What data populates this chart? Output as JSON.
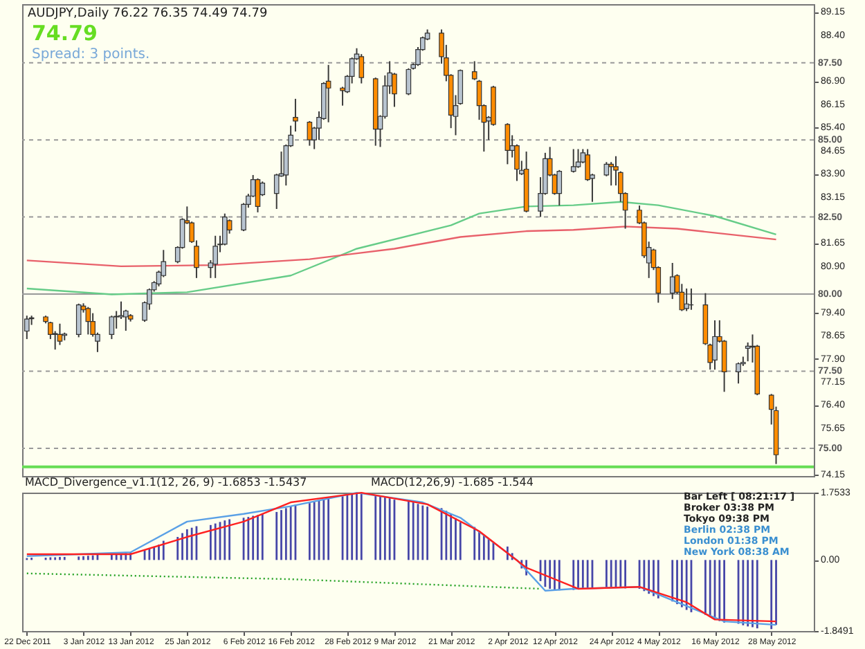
{
  "chart_data": [
    {
      "type": "candlestick",
      "title": "AUDJPY,Daily 76.22 76.35 74.49 74.79",
      "subtitle": "74.79",
      "annotations": [
        "Spread: 3 points."
      ],
      "x": [
        "2011-12-22",
        "2011-12-23",
        "2011-12-26",
        "2011-12-27",
        "2011-12-28",
        "2011-12-29",
        "2011-12-30",
        "2012-01-02",
        "2012-01-03",
        "2012-01-04",
        "2012-01-05",
        "2012-01-06",
        "2012-01-09",
        "2012-01-10",
        "2012-01-11",
        "2012-01-12",
        "2012-01-13",
        "2012-01-16",
        "2012-01-17",
        "2012-01-18",
        "2012-01-19",
        "2012-01-20",
        "2012-01-23",
        "2012-01-24",
        "2012-01-25",
        "2012-01-26",
        "2012-01-27",
        "2012-01-30",
        "2012-01-31",
        "2012-02-01",
        "2012-02-02",
        "2012-02-03",
        "2012-02-06",
        "2012-02-07",
        "2012-02-08",
        "2012-02-09",
        "2012-02-10",
        "2012-02-13",
        "2012-02-14",
        "2012-02-15",
        "2012-02-16",
        "2012-02-17",
        "2012-02-20",
        "2012-02-21",
        "2012-02-22",
        "2012-02-23",
        "2012-02-24",
        "2012-02-27",
        "2012-02-28",
        "2012-02-29",
        "2012-03-01",
        "2012-03-02",
        "2012-03-05",
        "2012-03-06",
        "2012-03-07",
        "2012-03-08",
        "2012-03-09",
        "2012-03-12",
        "2012-03-13",
        "2012-03-14",
        "2012-03-15",
        "2012-03-16",
        "2012-03-19",
        "2012-03-20",
        "2012-03-21",
        "2012-03-22",
        "2012-03-23",
        "2012-03-26",
        "2012-03-27",
        "2012-03-28",
        "2012-03-29",
        "2012-03-30",
        "2012-04-02",
        "2012-04-03",
        "2012-04-04",
        "2012-04-05",
        "2012-04-06",
        "2012-04-09",
        "2012-04-10",
        "2012-04-11",
        "2012-04-12",
        "2012-04-13",
        "2012-04-16",
        "2012-04-17",
        "2012-04-18",
        "2012-04-19",
        "2012-04-20",
        "2012-04-23",
        "2012-04-24",
        "2012-04-25",
        "2012-04-26",
        "2012-04-27",
        "2012-04-30",
        "2012-05-01",
        "2012-05-02",
        "2012-05-03",
        "2012-05-04",
        "2012-05-07",
        "2012-05-08",
        "2012-05-09",
        "2012-05-10",
        "2012-05-11",
        "2012-05-14",
        "2012-05-15",
        "2012-05-16",
        "2012-05-17",
        "2012-05-18",
        "2012-05-21",
        "2012-05-22",
        "2012-05-23",
        "2012-05-24",
        "2012-05-25",
        "2012-05-28",
        "2012-05-29"
      ],
      "ohlc": [
        [
          78.8,
          79.3,
          78.54,
          79.19
        ],
        [
          79.2,
          79.3,
          79.0,
          79.23
        ],
        [
          79.26,
          79.3,
          79.05,
          79.11
        ],
        [
          79.07,
          79.1,
          78.54,
          78.69
        ],
        [
          78.69,
          78.8,
          78.2,
          78.72
        ],
        [
          78.69,
          79.04,
          78.35,
          78.47
        ],
        [
          78.66,
          78.75,
          78.5,
          78.7
        ],
        [
          78.69,
          79.69,
          78.6,
          79.65
        ],
        [
          79.61,
          79.7,
          79.4,
          79.49
        ],
        [
          79.53,
          79.58,
          78.69,
          79.11
        ],
        [
          79.11,
          79.38,
          78.62,
          78.69
        ],
        [
          78.47,
          78.75,
          78.12,
          78.69
        ],
        [
          78.69,
          79.3,
          78.54,
          79.26
        ],
        [
          79.26,
          79.45,
          78.88,
          79.28
        ],
        [
          79.26,
          79.76,
          79.19,
          79.3
        ],
        [
          79.26,
          79.49,
          78.81,
          79.45
        ],
        [
          79.3,
          79.35,
          79.11,
          79.19
        ],
        [
          79.15,
          79.76,
          79.1,
          79.72
        ],
        [
          79.68,
          80.18,
          79.49,
          80.14
        ],
        [
          80.14,
          80.42,
          80.08,
          80.37
        ],
        [
          80.33,
          80.76,
          80.25,
          80.71
        ],
        [
          80.6,
          81.43,
          80.55,
          81.05
        ],
        [
          81.05,
          81.55,
          81.0,
          81.51
        ],
        [
          81.51,
          82.46,
          81.47,
          82.42
        ],
        [
          82.38,
          82.84,
          82.27,
          82.31
        ],
        [
          82.31,
          82.35,
          81.66,
          81.7
        ],
        [
          81.55,
          81.74,
          80.52,
          80.86
        ],
        [
          80.86,
          81.1,
          80.52,
          81.01
        ],
        [
          80.97,
          81.89,
          80.52,
          81.55
        ],
        [
          81.6,
          81.89,
          81.36,
          81.62
        ],
        [
          81.62,
          82.61,
          81.58,
          82.5
        ],
        [
          82.38,
          82.42,
          81.96,
          82.08
        ],
        [
          82.08,
          82.95,
          82.04,
          82.91
        ],
        [
          82.91,
          83.25,
          82.8,
          83.18
        ],
        [
          83.18,
          83.86,
          83.14,
          83.71
        ],
        [
          83.71,
          83.75,
          82.65,
          82.84
        ],
        [
          83.22,
          83.65,
          83.18,
          83.6
        ],
        [
          83.26,
          83.9,
          82.76,
          83.86
        ],
        [
          83.83,
          84.62,
          83.8,
          83.9
        ],
        [
          83.86,
          84.85,
          83.52,
          84.81
        ],
        [
          84.81,
          85.46,
          84.77,
          85.15
        ],
        [
          85.73,
          86.33,
          85.27,
          85.61
        ],
        [
          85.57,
          85.61,
          84.81,
          85.0
        ],
        [
          85.0,
          85.42,
          84.7,
          85.38
        ],
        [
          85.38,
          85.92,
          85.0,
          85.73
        ],
        [
          85.69,
          86.87,
          85.65,
          86.83
        ],
        [
          86.9,
          87.43,
          85.57,
          86.68
        ],
        [
          86.68,
          86.72,
          86.11,
          86.6
        ],
        [
          86.56,
          87.1,
          86.52,
          87.06
        ],
        [
          87.06,
          87.67,
          86.83,
          87.63
        ],
        [
          87.63,
          87.97,
          87.59,
          87.78
        ],
        [
          87.7,
          87.78,
          86.83,
          87.02
        ],
        [
          86.98,
          87.02,
          84.81,
          85.35
        ],
        [
          85.35,
          85.8,
          84.77,
          85.76
        ],
        [
          85.76,
          87.09,
          85.69,
          86.75
        ],
        [
          86.75,
          87.55,
          86.49,
          87.17
        ],
        [
          87.13,
          87.17,
          86.07,
          86.49
        ],
        [
          86.49,
          87.32,
          86.45,
          87.28
        ],
        [
          87.32,
          87.48,
          87.28,
          87.44
        ],
        [
          87.44,
          88.01,
          87.4,
          87.93
        ],
        [
          87.93,
          88.35,
          87.89,
          88.31
        ],
        [
          88.27,
          88.58,
          88.23,
          88.46
        ],
        [
          88.46,
          88.58,
          87.47,
          87.7
        ],
        [
          87.66,
          88.08,
          86.9,
          87.09
        ],
        [
          87.09,
          87.13,
          85.38,
          85.8
        ],
        [
          85.76,
          86.45,
          85.15,
          86.11
        ],
        [
          86.18,
          87.28,
          86.14,
          87.25
        ],
        [
          87.21,
          87.55,
          86.94,
          86.98
        ],
        [
          86.9,
          86.94,
          85.65,
          86.11
        ],
        [
          86.11,
          86.15,
          84.62,
          85.57
        ],
        [
          85.61,
          85.77,
          85.0,
          85.73
        ],
        [
          86.71,
          86.75,
          85.46,
          85.5
        ],
        [
          85.5,
          85.54,
          84.21,
          84.66
        ],
        [
          84.66,
          85.15,
          84.43,
          84.81
        ],
        [
          84.81,
          84.85,
          83.67,
          84.05
        ],
        [
          83.9,
          84.32,
          83.86,
          84.01
        ],
        [
          84.05,
          84.62,
          82.65,
          82.69
        ],
        [
          82.69,
          83.79,
          82.5,
          83.26
        ],
        [
          83.26,
          84.58,
          83.22,
          84.39
        ],
        [
          84.39,
          84.77,
          83.82,
          83.86
        ],
        [
          83.86,
          83.9,
          83.22,
          83.26
        ],
        [
          83.26,
          84.02,
          82.87,
          83.98
        ],
        [
          83.98,
          84.7,
          83.94,
          84.13
        ],
        [
          84.13,
          84.7,
          84.09,
          84.28
        ],
        [
          84.28,
          84.7,
          84.24,
          84.58
        ],
        [
          84.51,
          84.7,
          83.67,
          83.71
        ],
        [
          83.75,
          83.9,
          82.99,
          83.86
        ],
        [
          83.86,
          84.28,
          83.82,
          84.21
        ],
        [
          84.21,
          84.28,
          83.52,
          84.13
        ],
        [
          84.13,
          84.47,
          83.52,
          84.02
        ],
        [
          83.94,
          83.98,
          82.99,
          83.26
        ],
        [
          83.26,
          83.3,
          82.12,
          82.72
        ],
        [
          82.72,
          82.87,
          82.27,
          82.31
        ],
        [
          82.31,
          82.35,
          81.17,
          81.24
        ],
        [
          81.01,
          81.7,
          80.52,
          81.51
        ],
        [
          81.43,
          81.47,
          80.78,
          80.86
        ],
        [
          80.86,
          80.9,
          79.72,
          80.03
        ],
        [
          80.03,
          81.01,
          79.84,
          80.56
        ],
        [
          80.6,
          80.64,
          80.0,
          80.06
        ],
        [
          80.06,
          80.33,
          79.45,
          79.49
        ],
        [
          79.53,
          80.18,
          79.45,
          79.68
        ],
        [
          79.65,
          80.18,
          79.49,
          79.65
        ],
        [
          79.65,
          80.03,
          78.35,
          78.39
        ],
        [
          78.35,
          78.39,
          77.55,
          77.78
        ],
        [
          77.86,
          79.15,
          77.55,
          78.62
        ],
        [
          78.62,
          79.15,
          78.43,
          78.47
        ],
        [
          78.47,
          78.51,
          76.83,
          77.48
        ],
        [
          77.48,
          77.78,
          77.1,
          77.74
        ],
        [
          77.74,
          77.97,
          77.67,
          77.78
        ],
        [
          78.24,
          78.43,
          77.82,
          78.31
        ],
        [
          78.28,
          78.69,
          77.78,
          78.31
        ],
        [
          78.31,
          78.35,
          76.72,
          76.76
        ],
        [
          76.72,
          76.76,
          75.77,
          76.26
        ],
        [
          76.22,
          76.35,
          74.49,
          74.79
        ]
      ],
      "colors": [
        "#b8c4d0",
        "#b8c4d0",
        "#ff8c00",
        "#ff8c00",
        "#b8c4d0",
        "#ff8c00",
        "#b8c4d0",
        "#b8c4d0",
        "#ff8c00",
        "#ff8c00",
        "#ff8c00",
        "#b8c4d0",
        "#b8c4d0",
        "#b8c4d0",
        "#b8c4d0",
        "#b8c4d0",
        "#ff8c00",
        "#b8c4d0",
        "#b8c4d0",
        "#b8c4d0",
        "#b8c4d0",
        "#b8c4d0",
        "#b8c4d0",
        "#b8c4d0",
        "#ff8c00",
        "#ff8c00",
        "#ff8c00",
        "#b8c4d0",
        "#b8c4d0",
        "#b8c4d0",
        "#b8c4d0",
        "#ff8c00",
        "#b8c4d0",
        "#b8c4d0",
        "#b8c4d0",
        "#ff8c00",
        "#b8c4d0",
        "#b8c4d0",
        "#b8c4d0",
        "#b8c4d0",
        "#b8c4d0",
        "#ff8c00",
        "#ff8c00",
        "#b8c4d0",
        "#b8c4d0",
        "#b8c4d0",
        "#ff8c00",
        "#ff8c00",
        "#b8c4d0",
        "#b8c4d0",
        "#b8c4d0",
        "#ff8c00",
        "#ff8c00",
        "#b8c4d0",
        "#b8c4d0",
        "#b8c4d0",
        "#ff8c00",
        "#b8c4d0",
        "#b8c4d0",
        "#b8c4d0",
        "#b8c4d0",
        "#b8c4d0",
        "#ff8c00",
        "#ff8c00",
        "#ff8c00",
        "#b8c4d0",
        "#b8c4d0",
        "#ff8c00",
        "#ff8c00",
        "#ff8c00",
        "#b8c4d0",
        "#ff8c00",
        "#ff8c00",
        "#b8c4d0",
        "#ff8c00",
        "#b8c4d0",
        "#ff8c00",
        "#b8c4d0",
        "#b8c4d0",
        "#ff8c00",
        "#ff8c00",
        "#b8c4d0",
        "#b8c4d0",
        "#b8c4d0",
        "#b8c4d0",
        "#ff8c00",
        "#b8c4d0",
        "#b8c4d0",
        "#ff8c00",
        "#ff8c00",
        "#ff8c00",
        "#ff8c00",
        "#ff8c00",
        "#ff8c00",
        "#b8c4d0",
        "#ff8c00",
        "#ff8c00",
        "#b8c4d0",
        "#ff8c00",
        "#ff8c00",
        "#b8c4d0",
        "#333333",
        "#ff8c00",
        "#ff8c00",
        "#b8c4d0",
        "#ff8c00",
        "#ff8c00",
        "#b8c4d0",
        "#b8c4d0",
        "#b8c4d0",
        "#b8c4d0",
        "#ff8c00",
        "#ff8c00",
        "#ff8c00"
      ],
      "series": [
        {
          "type": "line",
          "color": "#66cc88",
          "x": [
            "2011-12-22",
            "2012-01-09",
            "2012-01-25",
            "2012-02-16",
            "2012-03-01",
            "2012-03-21",
            "2012-03-27",
            "2012-04-06",
            "2012-04-16",
            "2012-04-26",
            "2012-05-04",
            "2012-05-16",
            "2012-05-29"
          ],
          "values": [
            80.18,
            79.99,
            80.06,
            80.6,
            81.47,
            82.23,
            82.61,
            82.84,
            82.88,
            82.99,
            82.88,
            82.53,
            81.93
          ]
        },
        {
          "type": "line",
          "color": "#e8606a",
          "x": [
            "2011-12-22",
            "2012-01-11",
            "2012-01-31",
            "2012-02-20",
            "2012-03-09",
            "2012-03-23",
            "2012-04-06",
            "2012-04-16",
            "2012-04-27",
            "2012-05-08",
            "2012-05-29"
          ],
          "values": [
            81.09,
            80.9,
            80.94,
            81.13,
            81.47,
            81.85,
            82.04,
            82.08,
            82.19,
            82.12,
            81.77
          ]
        }
      ],
      "xlim": [
        "2011-12-21",
        "2012-06-06"
      ],
      "ylim": [
        74.1,
        89.4
      ],
      "yticks": [
        74.15,
        75.65,
        {
          "value": 76.4,
          "label": "76.40"
        },
        77.15,
        {
          "value": 77.9,
          "label": "77.90"
        },
        78.65,
        {
          "value": 79.4,
          "label": "79.40"
        },
        {
          "value": 80.9,
          "label": "80.90"
        },
        81.65,
        83.15,
        {
          "value": 83.9,
          "label": "83.90"
        },
        84.65,
        {
          "value": 85.4,
          "label": "85.40"
        },
        86.15,
        {
          "value": 86.9,
          "label": "86.90"
        },
        {
          "value": 88.4,
          "label": "88.40"
        },
        89.15
      ],
      "tick_labels": "y",
      "ref_lines": [
        {
          "axis": "y",
          "value": 87.5,
          "label": "87.50",
          "color": "#999999",
          "line_style": "dashed"
        },
        {
          "axis": "y",
          "value": 85.0,
          "label": "85.00",
          "color": "#999999",
          "line_style": "dashed"
        },
        {
          "axis": "y",
          "value": 82.5,
          "label": "82.50",
          "color": "#999999",
          "line_style": "dashed"
        },
        {
          "axis": "y",
          "value": 80.0,
          "label": "80.00",
          "color": "#999999",
          "line_style": "solid"
        },
        {
          "axis": "y",
          "value": 77.5,
          "label": "77.50",
          "color": "#999999",
          "line_style": "dashed"
        },
        {
          "axis": "y",
          "value": 75.0,
          "label": "75.00",
          "color": "#999999",
          "line_style": "dashed"
        },
        {
          "axis": "y",
          "value": 74.4,
          "color": "#66dd55",
          "line_style": "solid"
        }
      ]
    },
    {
      "type": "bar",
      "annotations": [
        "MACD_Divergence_v1.1(12, 26, 9) -1.6853 -1.5437",
        "MACD(12,26,9) -1.685 -1.544",
        "Bar Left [ 08:21:17 ]",
        "Broker 03:38 PM",
        "Tokyo 09:38 PM",
        "Berlin 02:38 PM",
        "London 01:38 PM",
        "New York 08:38 AM"
      ],
      "x": [
        "2011-12-22",
        "2011-12-23",
        "2011-12-26",
        "2011-12-27",
        "2011-12-28",
        "2011-12-29",
        "2011-12-30",
        "2012-01-02",
        "2012-01-03",
        "2012-01-04",
        "2012-01-05",
        "2012-01-06",
        "2012-01-09",
        "2012-01-10",
        "2012-01-11",
        "2012-01-12",
        "2012-01-13",
        "2012-01-16",
        "2012-01-17",
        "2012-01-18",
        "2012-01-19",
        "2012-01-20",
        "2012-01-23",
        "2012-01-24",
        "2012-01-25",
        "2012-01-26",
        "2012-01-27",
        "2012-01-30",
        "2012-01-31",
        "2012-02-01",
        "2012-02-02",
        "2012-02-03",
        "2012-02-06",
        "2012-02-07",
        "2012-02-08",
        "2012-02-09",
        "2012-02-10",
        "2012-02-13",
        "2012-02-14",
        "2012-02-15",
        "2012-02-16",
        "2012-02-17",
        "2012-02-20",
        "2012-02-21",
        "2012-02-22",
        "2012-02-23",
        "2012-02-24",
        "2012-02-27",
        "2012-02-28",
        "2012-02-29",
        "2012-03-01",
        "2012-03-02",
        "2012-03-05",
        "2012-03-06",
        "2012-03-07",
        "2012-03-08",
        "2012-03-09",
        "2012-03-12",
        "2012-03-13",
        "2012-03-14",
        "2012-03-15",
        "2012-03-16",
        "2012-03-19",
        "2012-03-20",
        "2012-03-21",
        "2012-03-22",
        "2012-03-23",
        "2012-03-26",
        "2012-03-27",
        "2012-03-28",
        "2012-03-29",
        "2012-03-30",
        "2012-04-02",
        "2012-04-03",
        "2012-04-04",
        "2012-04-05",
        "2012-04-06",
        "2012-04-09",
        "2012-04-10",
        "2012-04-11",
        "2012-04-12",
        "2012-04-13",
        "2012-04-16",
        "2012-04-17",
        "2012-04-18",
        "2012-04-19",
        "2012-04-20",
        "2012-04-23",
        "2012-04-24",
        "2012-04-25",
        "2012-04-26",
        "2012-04-27",
        "2012-04-30",
        "2012-05-01",
        "2012-05-02",
        "2012-05-03",
        "2012-05-04",
        "2012-05-07",
        "2012-05-08",
        "2012-05-09",
        "2012-05-10",
        "2012-05-11",
        "2012-05-14",
        "2012-05-15",
        "2012-05-16",
        "2012-05-17",
        "2012-05-18",
        "2012-05-21",
        "2012-05-22",
        "2012-05-23",
        "2012-05-24",
        "2012-05-25",
        "2012-05-28",
        "2012-05-29"
      ],
      "series": [
        {
          "type": "bar",
          "color": "#4646a8",
          "values": [
            0.05,
            0.06,
            0.06,
            0.07,
            0.07,
            0.08,
            0.08,
            0.09,
            0.1,
            0.11,
            0.12,
            0.14,
            0.15,
            0.16,
            0.17,
            0.19,
            0.2,
            0.25,
            0.3,
            0.35,
            0.4,
            0.5,
            0.6,
            0.7,
            0.8,
            0.84,
            0.88,
            0.91,
            0.95,
            0.99,
            1.03,
            1.06,
            1.1,
            1.12,
            1.15,
            1.17,
            1.2,
            1.25,
            1.3,
            1.35,
            1.4,
            1.44,
            1.48,
            1.51,
            1.55,
            1.59,
            1.63,
            1.66,
            1.7,
            1.73,
            1.75,
            1.72,
            1.7,
            1.67,
            1.65,
            1.61,
            1.57,
            1.54,
            1.5,
            1.46,
            1.42,
            1.39,
            1.35,
            1.28,
            1.2,
            1.09,
            0.98,
            0.86,
            0.75,
            0.65,
            0.55,
            0.45,
            0.35,
            0.18,
            null,
            -0.22,
            -0.4,
            -0.55,
            -0.7,
            -0.75,
            -0.8,
            -0.79,
            -0.78,
            -0.76,
            -0.75,
            -0.74,
            -0.73,
            -0.71,
            -0.7,
            -0.71,
            -0.72,
            -0.74,
            -0.75,
            -0.81,
            -0.88,
            -0.94,
            -1.0,
            -1.08,
            -1.15,
            -1.23,
            -1.3,
            -1.36,
            -1.43,
            -1.49,
            -1.55,
            -1.59,
            -1.63,
            -1.66,
            -1.7,
            -1.73,
            -1.75,
            -1.78,
            -1.8,
            -1.69
          ]
        },
        {
          "type": "line",
          "color": "#20a020",
          "line_style": "dotted",
          "x": [
            "2011-12-22",
            "2012-02-16",
            "2012-04-09"
          ],
          "values": [
            -0.35,
            -0.5,
            -0.75
          ]
        },
        {
          "type": "line",
          "color": "#5aa0e6",
          "x": [
            "2011-12-22",
            "2012-01-13",
            "2012-01-25",
            "2012-02-06",
            "2012-02-16",
            "2012-03-01",
            "2012-03-15",
            "2012-03-23",
            "2012-04-04",
            "2012-04-10",
            "2012-04-16",
            "2012-04-30",
            "2012-05-10",
            "2012-05-18",
            "2012-05-29"
          ],
          "values": [
            0.1,
            0.2,
            1.0,
            1.2,
            1.4,
            1.75,
            1.5,
            1.1,
            0.0,
            -0.8,
            -0.75,
            -0.7,
            -1.2,
            -1.6,
            -1.69
          ]
        },
        {
          "type": "line",
          "color": "#ff2020",
          "x": [
            "2011-12-22",
            "2012-01-13",
            "2012-01-25",
            "2012-02-06",
            "2012-02-16",
            "2012-03-02",
            "2012-03-16",
            "2012-03-27",
            "2012-04-06",
            "2012-04-17",
            "2012-04-30",
            "2012-05-10",
            "2012-05-16",
            "2012-05-29"
          ],
          "values": [
            0.15,
            0.15,
            0.6,
            1.0,
            1.5,
            1.75,
            1.45,
            0.75,
            -0.2,
            -0.75,
            -0.7,
            -1.1,
            -1.55,
            -1.6
          ]
        }
      ],
      "xlim": [
        "2011-12-21",
        "2012-06-06"
      ],
      "ylim": [
        -1.8491,
        1.7533
      ],
      "xticks": [
        {
          "value": "2011-12-22",
          "label": "22 Dec 2011"
        },
        {
          "value": "2012-01-03",
          "label": "3 Jan 2012"
        },
        {
          "value": "2012-01-13",
          "label": "13 Jan 2012"
        },
        {
          "value": "2012-01-25",
          "label": "25 Jan 2012"
        },
        {
          "value": "2012-02-06",
          "label": "6 Feb 2012"
        },
        {
          "value": "2012-02-16",
          "label": "16 Feb 2012"
        },
        {
          "value": "2012-02-28",
          "label": "28 Feb 2012"
        },
        {
          "value": "2012-03-09",
          "label": "9 Mar 2012"
        },
        {
          "value": "2012-03-21",
          "label": "21 Mar 2012"
        },
        {
          "value": "2012-04-02",
          "label": "2 Apr 2012"
        },
        {
          "value": "2012-04-12",
          "label": "12 Apr 2012"
        },
        {
          "value": "2012-04-24",
          "label": "24 Apr 2012"
        },
        {
          "value": "2012-05-04",
          "label": "4 May 2012"
        },
        {
          "value": "2012-05-16",
          "label": "16 May 2012"
        },
        {
          "value": "2012-05-28",
          "label": "28 May 2012"
        }
      ],
      "yticks": [
        -1.8491,
        {
          "value": 0,
          "label": "0.00"
        },
        1.7533
      ]
    }
  ]
}
